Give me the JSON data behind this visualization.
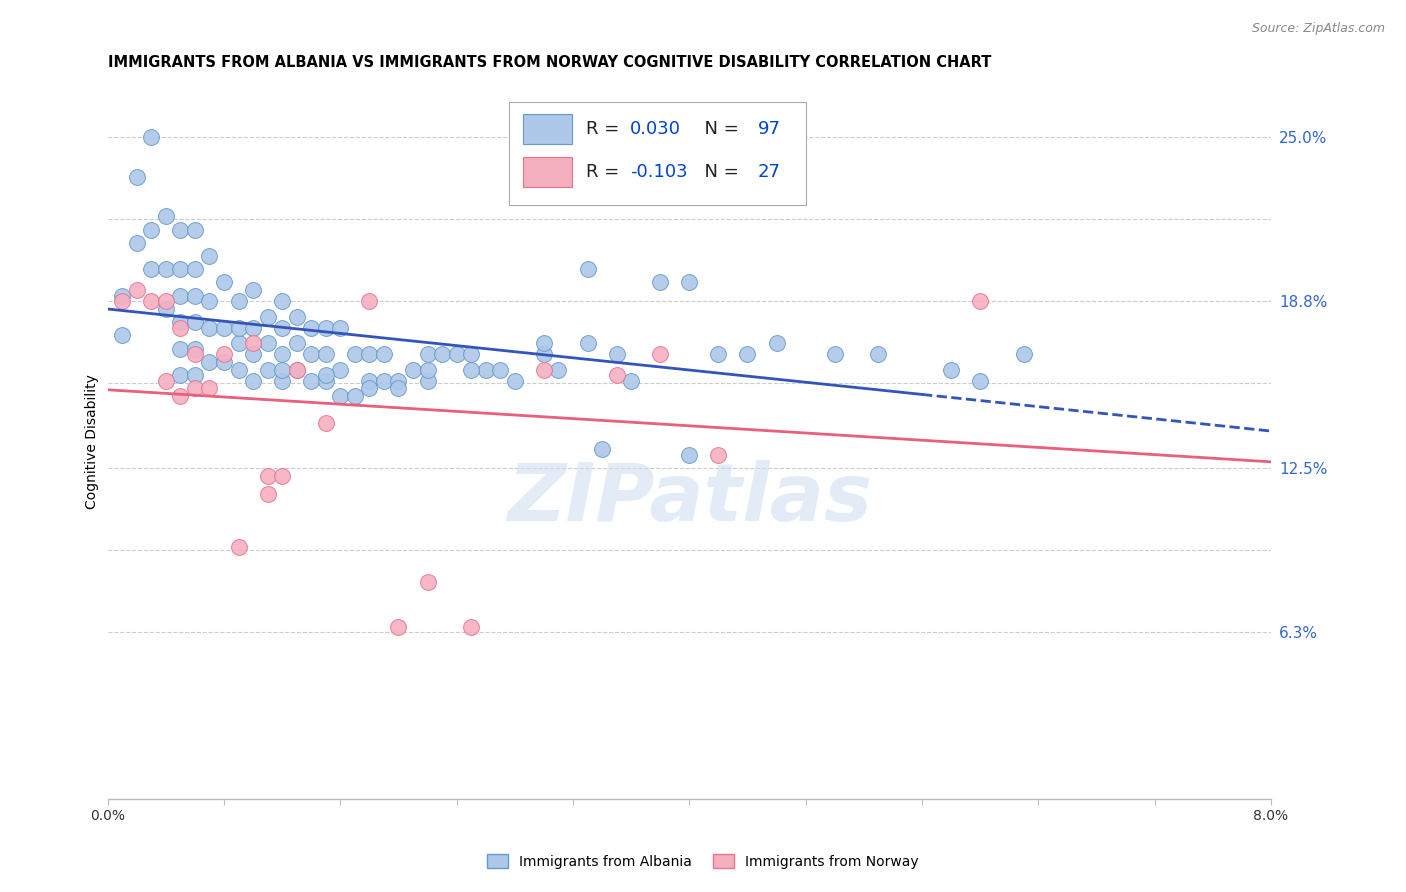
{
  "title": "IMMIGRANTS FROM ALBANIA VS IMMIGRANTS FROM NORWAY COGNITIVE DISABILITY CORRELATION CHART",
  "source": "Source: ZipAtlas.com",
  "ylabel": "Cognitive Disability",
  "albania_color": "#adc8e8",
  "norway_color": "#f5b0c0",
  "albania_edge": "#6699cc",
  "norway_edge": "#e87090",
  "trend_albania_color": "#3355bb",
  "trend_norway_color": "#e8607a",
  "albania_R": 0.03,
  "albania_N": 97,
  "norway_R": -0.103,
  "norway_N": 27,
  "xmin": 0.0,
  "xmax": 0.08,
  "ymin": 0.0,
  "ymax": 0.27,
  "ytick_vals": [
    0.0,
    0.063,
    0.094,
    0.125,
    0.157,
    0.188,
    0.219,
    0.25
  ],
  "ytick_labels": [
    "",
    "6.3%",
    "",
    "12.5%",
    "",
    "18.8%",
    "",
    "25.0%"
  ],
  "albania_x": [
    0.001,
    0.001,
    0.002,
    0.002,
    0.003,
    0.003,
    0.003,
    0.004,
    0.004,
    0.004,
    0.005,
    0.005,
    0.005,
    0.005,
    0.005,
    0.005,
    0.006,
    0.006,
    0.006,
    0.006,
    0.006,
    0.006,
    0.007,
    0.007,
    0.007,
    0.007,
    0.008,
    0.008,
    0.008,
    0.009,
    0.009,
    0.009,
    0.009,
    0.01,
    0.01,
    0.01,
    0.01,
    0.011,
    0.011,
    0.011,
    0.012,
    0.012,
    0.012,
    0.012,
    0.013,
    0.013,
    0.013,
    0.014,
    0.014,
    0.014,
    0.015,
    0.015,
    0.015,
    0.016,
    0.016,
    0.016,
    0.017,
    0.017,
    0.018,
    0.018,
    0.019,
    0.019,
    0.02,
    0.021,
    0.022,
    0.022,
    0.023,
    0.024,
    0.025,
    0.026,
    0.027,
    0.028,
    0.03,
    0.031,
    0.033,
    0.034,
    0.035,
    0.036,
    0.038,
    0.04,
    0.042,
    0.044,
    0.046,
    0.05,
    0.053,
    0.058,
    0.06,
    0.063,
    0.033,
    0.02,
    0.015,
    0.012,
    0.025,
    0.03,
    0.018,
    0.022,
    0.04
  ],
  "albania_y": [
    0.175,
    0.19,
    0.21,
    0.235,
    0.2,
    0.215,
    0.25,
    0.185,
    0.2,
    0.22,
    0.16,
    0.17,
    0.18,
    0.19,
    0.2,
    0.215,
    0.16,
    0.17,
    0.18,
    0.19,
    0.2,
    0.215,
    0.165,
    0.178,
    0.188,
    0.205,
    0.165,
    0.178,
    0.195,
    0.162,
    0.172,
    0.178,
    0.188,
    0.158,
    0.168,
    0.178,
    0.192,
    0.162,
    0.172,
    0.182,
    0.158,
    0.168,
    0.178,
    0.188,
    0.162,
    0.172,
    0.182,
    0.158,
    0.168,
    0.178,
    0.158,
    0.168,
    0.178,
    0.152,
    0.162,
    0.178,
    0.152,
    0.168,
    0.158,
    0.168,
    0.158,
    0.168,
    0.158,
    0.162,
    0.158,
    0.168,
    0.168,
    0.168,
    0.168,
    0.162,
    0.162,
    0.158,
    0.168,
    0.162,
    0.2,
    0.132,
    0.168,
    0.158,
    0.195,
    0.195,
    0.168,
    0.168,
    0.172,
    0.168,
    0.168,
    0.162,
    0.158,
    0.168,
    0.172,
    0.155,
    0.16,
    0.162,
    0.162,
    0.172,
    0.155,
    0.162,
    0.13
  ],
  "norway_x": [
    0.001,
    0.002,
    0.003,
    0.004,
    0.004,
    0.005,
    0.005,
    0.006,
    0.006,
    0.007,
    0.008,
    0.009,
    0.01,
    0.011,
    0.011,
    0.012,
    0.013,
    0.015,
    0.018,
    0.02,
    0.022,
    0.025,
    0.03,
    0.035,
    0.038,
    0.042,
    0.06
  ],
  "norway_y": [
    0.188,
    0.192,
    0.188,
    0.158,
    0.188,
    0.152,
    0.178,
    0.155,
    0.168,
    0.155,
    0.168,
    0.095,
    0.172,
    0.115,
    0.122,
    0.122,
    0.162,
    0.142,
    0.188,
    0.065,
    0.082,
    0.065,
    0.162,
    0.16,
    0.168,
    0.13,
    0.188
  ],
  "watermark": "ZIPatlas",
  "trend_split": 0.056
}
